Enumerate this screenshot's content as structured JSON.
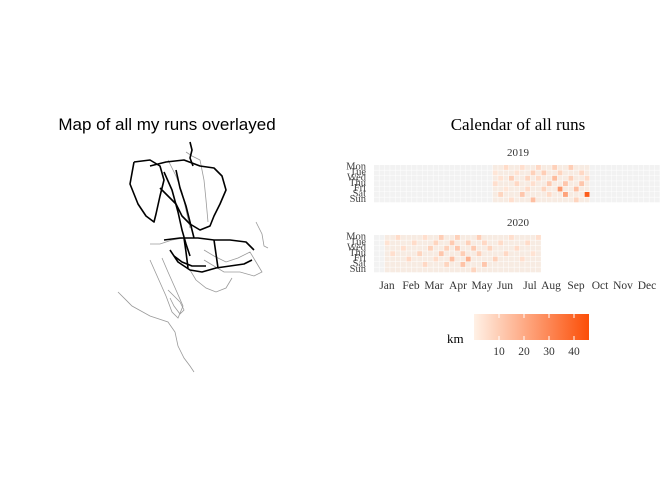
{
  "chart_data": [
    {
      "type": "map",
      "title": "Map of all my runs overlayed",
      "line_colors": {
        "major": "#000000",
        "minor": "#9a9a9a"
      }
    },
    {
      "type": "heatmap",
      "title": "Calendar of all runs",
      "days": [
        "Mon",
        "Tue",
        "Wed",
        "Thu",
        "Fri",
        "Sat",
        "Sun"
      ],
      "months": [
        "Jan",
        "Feb",
        "Mar",
        "Apr",
        "May",
        "Jun",
        "Jul",
        "Aug",
        "Sep",
        "Oct",
        "Nov",
        "Dec"
      ],
      "fill_scale": {
        "low": "#fff1e6",
        "high": "#fc4e07",
        "empty": "#f2f2f2"
      },
      "years": [
        {
          "label": "2019",
          "weeks": 53,
          "active_week_range": [
            22,
            39
          ],
          "runs": [
            [
              22,
              1,
              3
            ],
            [
              22,
              3,
              5
            ],
            [
              23,
              2,
              4
            ],
            [
              23,
              5,
              8
            ],
            [
              24,
              0,
              6
            ],
            [
              24,
              4,
              3
            ],
            [
              25,
              2,
              10
            ],
            [
              25,
              6,
              5
            ],
            [
              26,
              1,
              4
            ],
            [
              26,
              3,
              7
            ],
            [
              27,
              0,
              5
            ],
            [
              27,
              5,
              12
            ],
            [
              28,
              2,
              8
            ],
            [
              28,
              4,
              6
            ],
            [
              29,
              1,
              9
            ],
            [
              29,
              3,
              5
            ],
            [
              29,
              6,
              14
            ],
            [
              30,
              0,
              7
            ],
            [
              30,
              2,
              6
            ],
            [
              31,
              1,
              10
            ],
            [
              31,
              4,
              8
            ],
            [
              32,
              3,
              11
            ],
            [
              32,
              5,
              6
            ],
            [
              33,
              0,
              9
            ],
            [
              33,
              2,
              15
            ],
            [
              34,
              1,
              8
            ],
            [
              34,
              4,
              25
            ],
            [
              35,
              3,
              12
            ],
            [
              35,
              5,
              22
            ],
            [
              36,
              0,
              10
            ],
            [
              36,
              2,
              9
            ],
            [
              37,
              4,
              14
            ],
            [
              37,
              6,
              8
            ],
            [
              38,
              1,
              7
            ],
            [
              38,
              3,
              12
            ],
            [
              39,
              5,
              42
            ],
            [
              39,
              2,
              6
            ]
          ]
        },
        {
          "label": "2020",
          "weeks": 31,
          "active_week_range": [
            2,
            30
          ],
          "runs": [
            [
              2,
              1,
              4
            ],
            [
              3,
              3,
              5
            ],
            [
              4,
              0,
              6
            ],
            [
              5,
              2,
              5
            ],
            [
              6,
              4,
              7
            ],
            [
              7,
              1,
              6
            ],
            [
              8,
              3,
              8
            ],
            [
              9,
              0,
              5
            ],
            [
              9,
              5,
              7
            ],
            [
              10,
              2,
              9
            ],
            [
              11,
              1,
              8
            ],
            [
              11,
              4,
              6
            ],
            [
              12,
              0,
              10
            ],
            [
              12,
              3,
              12
            ],
            [
              13,
              2,
              9
            ],
            [
              13,
              5,
              8
            ],
            [
              14,
              1,
              11
            ],
            [
              14,
              4,
              14
            ],
            [
              15,
              0,
              9
            ],
            [
              15,
              2,
              12
            ],
            [
              16,
              3,
              10
            ],
            [
              16,
              5,
              13
            ],
            [
              17,
              1,
              9
            ],
            [
              17,
              4,
              18
            ],
            [
              18,
              2,
              11
            ],
            [
              18,
              6,
              8
            ],
            [
              19,
              0,
              10
            ],
            [
              19,
              3,
              9
            ],
            [
              20,
              1,
              7
            ],
            [
              20,
              5,
              12
            ],
            [
              21,
              2,
              8
            ],
            [
              22,
              4,
              9
            ],
            [
              23,
              1,
              6
            ],
            [
              24,
              3,
              7
            ],
            [
              25,
              0,
              5
            ],
            [
              26,
              2,
              6
            ],
            [
              27,
              4,
              5
            ],
            [
              28,
              1,
              6
            ],
            [
              29,
              3,
              4
            ],
            [
              30,
              0,
              5
            ]
          ]
        }
      ],
      "legend": {
        "title": "km",
        "ticks": [
          10,
          20,
          30,
          40
        ],
        "range": [
          0,
          46
        ]
      }
    }
  ]
}
